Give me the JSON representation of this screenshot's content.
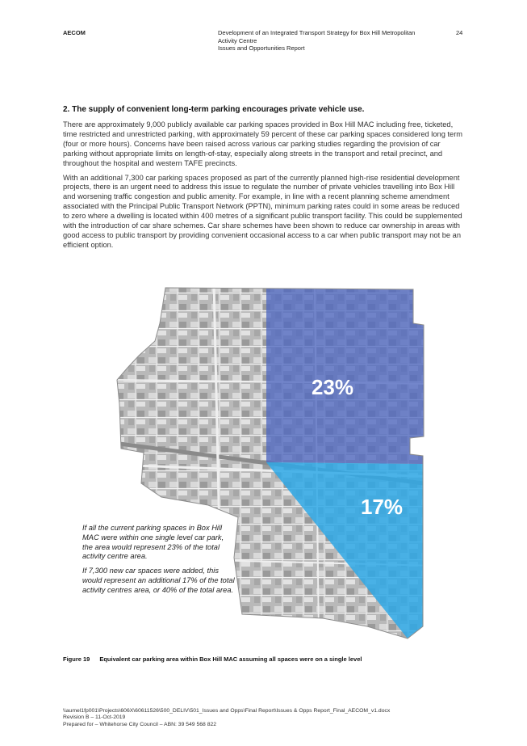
{
  "header": {
    "company": "AECOM",
    "doc_title_line1": "Development of an Integrated Transport Strategy for Box Hill Metropolitan",
    "doc_title_line2": "Activity Centre",
    "doc_title_line3": "Issues and Opportunities Report",
    "page_number": "24"
  },
  "section": {
    "heading": "2. The supply of convenient long-term parking encourages private vehicle use.",
    "paragraphs": [
      "There are approximately 9,000 publicly available car parking spaces provided in Box Hill MAC including free, ticketed, time restricted and unrestricted parking, with approximately 59 percent of these car parking spaces considered long term (four or more hours). Concerns have been raised across various car parking studies regarding the provision of car parking without appropriate limits on length-of-stay, especially along streets in the transport and retail precinct, and throughout the hospital and western TAFE precincts.",
      "With an additional 7,300 car parking spaces proposed as part of the currently planned high-rise residential development projects, there is an urgent need to address this issue to regulate the number of private vehicles travelling into Box Hill and worsening traffic congestion and public amenity. For example, in line with a recent planning scheme amendment associated with the Principal Public Transport Network (PPTN), minimum parking rates could in some areas be reduced to zero where a dwelling is located within 400 metres of a significant public transport facility. This could be supplemented with the introduction of car share schemes. Car share schemes have been shown to reduce car ownership in areas with good access to public transport by providing convenient occasional access to a car when public transport may not be an efficient option."
    ]
  },
  "figure": {
    "label_existing": "23%",
    "label_additional": "17%",
    "color_existing": "#5068c0",
    "color_additional": "#2ea8e6",
    "note_1": "If all the current parking spaces in Box Hill MAC were within one single level car park, the area would represent 23% of the total activity centre area.",
    "note_2": "If 7,300 new car spaces were added, this would represent an additional 17% of the total activity centres area, or 40% of the total area.",
    "caption_number": "Figure 19",
    "caption_text": "Equivalent car parking area within Box Hill MAC assuming all spaces were on a single level"
  },
  "footer": {
    "path": "\\\\aumel1fp001\\Projects\\606X\\60611526\\500_DELIV\\501_Issues and Opps\\Final Report\\Issues & Opps Report_Final_AECOM_v1.docx",
    "revision": "Revision B – 11-Oct-2019",
    "prepared_for": "Prepared for – Whitehorse City Council – ABN: 39 549 568 822"
  }
}
